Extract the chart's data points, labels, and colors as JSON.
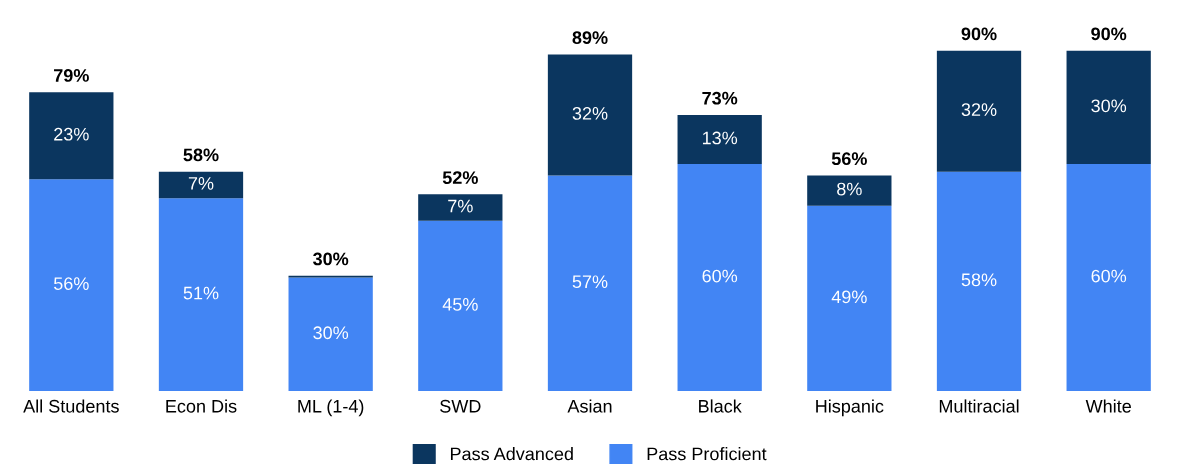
{
  "chart_data": {
    "type": "bar",
    "stacked": true,
    "legend": "bottom",
    "categories": [
      "All Students",
      "Econ Dis",
      "ML (1-4)",
      "SWD",
      "Asian",
      "Black",
      "Hispanic",
      "Multiracial",
      "White"
    ],
    "series": [
      {
        "name": "Pass Proficient",
        "color": "#4285f4",
        "values": [
          56,
          51,
          30,
          45,
          57,
          60,
          49,
          58,
          60
        ],
        "value_labels": [
          "56%",
          "51%",
          "30%",
          "45%",
          "57%",
          "60%",
          "49%",
          "58%",
          "60%"
        ]
      },
      {
        "name": "Pass Advanced",
        "color": "#0b365f",
        "values": [
          23,
          7,
          0.5,
          7,
          32,
          13,
          8,
          32,
          30
        ],
        "value_labels": [
          "23%",
          "7%",
          null,
          "7%",
          "32%",
          "13%",
          "8%",
          "32%",
          "30%"
        ]
      }
    ],
    "totals": [
      "79%",
      "58%",
      "30%",
      "52%",
      "89%",
      "73%",
      "56%",
      "90%",
      "90%"
    ]
  }
}
